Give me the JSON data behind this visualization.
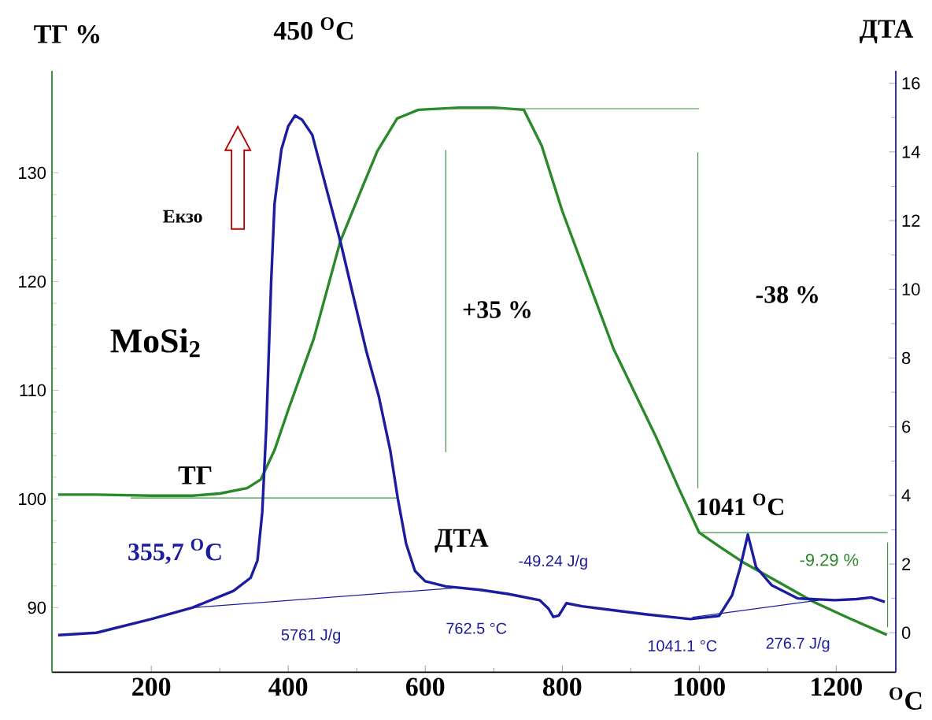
{
  "chart_data": {
    "type": "line",
    "xlabel": "$^{O}$C",
    "ylabel": "ТГ %",
    "y2label": "ДТА",
    "xlim": [
      55,
      1287
    ],
    "xticks": [
      200,
      400,
      600,
      800,
      1000,
      1200
    ],
    "ylim": [
      84.06,
      139.38
    ],
    "yticks": [
      90,
      100,
      110,
      120,
      130
    ],
    "y2lim": [
      -1.15,
      16.36
    ],
    "y2ticks": [
      0,
      2,
      4,
      6,
      8,
      10,
      12,
      14,
      16
    ],
    "series": [
      {
        "name": "ТГ",
        "color": "#2a8a2a",
        "x": [
          64,
          120,
          200,
          260,
          300,
          340,
          360,
          380,
          400,
          437,
          476,
          507,
          530,
          559,
          590,
          650,
          700,
          744,
          770,
          800,
          875,
          937,
          970,
          1000,
          1030,
          1066,
          1120,
          1168,
          1220,
          1274
        ],
        "values": [
          100.4,
          100.4,
          100.3,
          100.3,
          100.5,
          101.0,
          101.8,
          104.5,
          108.2,
          114.7,
          123.7,
          128.5,
          132.0,
          135.0,
          135.8,
          136.0,
          136.0,
          135.8,
          132.5,
          126.5,
          113.8,
          105.7,
          101.0,
          96.9,
          95.6,
          94.1,
          92.2,
          90.5,
          89.0,
          87.5
        ]
      },
      {
        "name": "ДТА",
        "color": "#1c1ca0",
        "axis": "y2",
        "x": [
          64,
          120,
          200,
          260,
          320,
          345,
          355,
          362,
          368,
          375,
          380,
          390,
          400,
          410,
          420,
          435,
          476,
          514,
          532,
          549,
          560,
          572,
          585,
          600,
          630,
          680,
          721,
          767,
          780,
          787,
          795,
          806,
          829,
          921,
          987,
          1029,
          1048,
          1060,
          1071,
          1083,
          1106,
          1144,
          1198,
          1230,
          1251,
          1271
        ],
        "values": [
          -0.07,
          0.0,
          0.4,
          0.73,
          1.22,
          1.6,
          2.1,
          3.5,
          6.0,
          10.2,
          12.5,
          14.07,
          14.75,
          15.06,
          14.94,
          14.5,
          11.4,
          8.2,
          6.9,
          5.3,
          3.9,
          2.6,
          1.8,
          1.5,
          1.35,
          1.25,
          1.13,
          0.95,
          0.7,
          0.46,
          0.5,
          0.86,
          0.77,
          0.54,
          0.4,
          0.49,
          1.09,
          1.91,
          2.86,
          1.91,
          1.38,
          1.0,
          0.95,
          0.98,
          1.03,
          0.9
        ]
      },
      {
        "color": "#3c963c",
        "x": [
          170,
          560
        ],
        "values": [
          100.1,
          100.1
        ]
      },
      {
        "color": "#3c963c",
        "x": [
          630,
          1000
        ],
        "values": [
          135.9,
          135.9
        ]
      },
      {
        "color": "#3c963c",
        "x": [
          1000,
          1275
        ],
        "values": [
          96.9,
          96.9
        ]
      },
      {
        "color": "#3c963c",
        "x": [
          630,
          630
        ],
        "values": [
          132.1,
          104.3
        ]
      },
      {
        "color": "#3c963c",
        "x": [
          998,
          998
        ],
        "values": [
          131.9,
          101.0
        ]
      },
      {
        "color": "#3c963c",
        "x": [
          1275,
          1275
        ],
        "values": [
          96.0,
          88.2
        ]
      },
      {
        "color": "#1c1ca0",
        "axis": "y2",
        "x": [
          260,
          640
        ],
        "values": [
          0.73,
          1.3
        ]
      },
      {
        "color": "#1c1ca0",
        "axis": "y2",
        "x": [
          990,
          1175
        ],
        "values": [
          0.45,
          0.95
        ]
      }
    ],
    "annotations": [
      {
        "text": "450 $^{O}$C",
        "x": 410,
        "y": 135.3
      },
      "Екзо",
      "MoSi$_{2}$",
      "355,7 $^{O}$C",
      "5761 J/g",
      "762.5 °C",
      "-49.24 J/g",
      "1041.1 °C",
      "276.7 J/g",
      "1041 $^{O}$C",
      "-9.29 %",
      "+35 %",
      "-38 %"
    ]
  }
}
